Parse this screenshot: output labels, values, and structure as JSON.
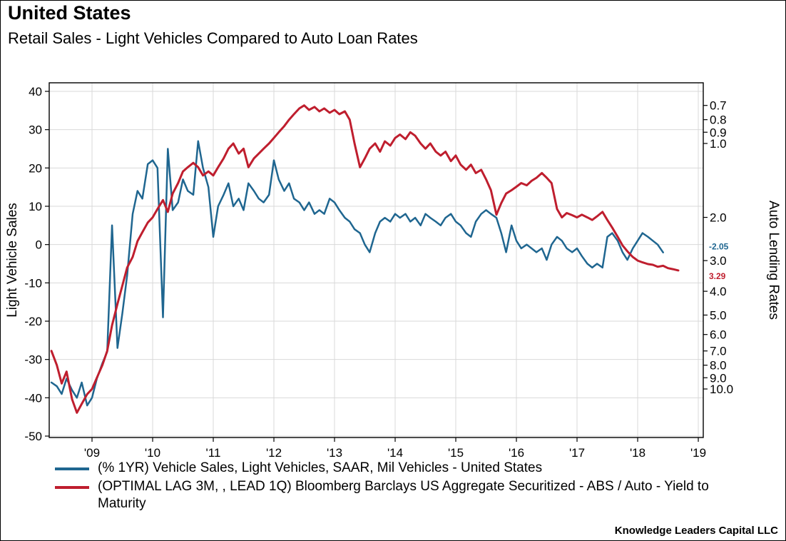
{
  "footer": {
    "text": "Knowledge Leaders Capital LLC"
  },
  "chart_data": {
    "type": "line",
    "title": "United States",
    "subtitle": "Retail Sales - Light Vehicles Compared to Auto Loan Rates",
    "style": {
      "grid": "#d9d9d9",
      "frame": "#000000",
      "background": "#ffffff"
    },
    "x_axis": {
      "range": [
        2008.294,
        2019.082
      ],
      "ticks": [
        2009,
        2010,
        2011,
        2012,
        2013,
        2014,
        2015,
        2016,
        2017,
        2018,
        2019
      ],
      "tick_labels": [
        "'09",
        "'10",
        "'11",
        "'12",
        "'13",
        "'14",
        "'15",
        "'16",
        "'17",
        "'18",
        "'19"
      ]
    },
    "y_left": {
      "label": "Light Vehicle Sales",
      "scale": "linear",
      "ticks": [
        40,
        30,
        20,
        10,
        0,
        -10,
        -20,
        -30,
        -40,
        -50
      ],
      "range": [
        -50,
        40
      ]
    },
    "y_right": {
      "label": "Auto Lending Rates",
      "scale": "log-inverted",
      "ticks": [
        0.7,
        0.8,
        0.9,
        1.0,
        2.0,
        3.0,
        4.0,
        5.0,
        6.0,
        7.0,
        8.0,
        9.0,
        10.0
      ]
    },
    "legend_position": "bottom",
    "grid": true,
    "series": [
      {
        "name": "(% 1YR) Vehicle Sales, Light Vehicles, SAAR, Mil Vehicles - United States",
        "color": "#1f6690",
        "axis": "left",
        "end_label": "-2.05",
        "x": [
          2008.33,
          2008.42,
          2008.5,
          2008.58,
          2008.67,
          2008.75,
          2008.83,
          2008.92,
          2009.0,
          2009.08,
          2009.17,
          2009.25,
          2009.33,
          2009.42,
          2009.5,
          2009.58,
          2009.67,
          2009.75,
          2009.83,
          2009.92,
          2010.0,
          2010.08,
          2010.17,
          2010.25,
          2010.33,
          2010.42,
          2010.5,
          2010.58,
          2010.67,
          2010.75,
          2010.83,
          2010.92,
          2011.0,
          2011.08,
          2011.17,
          2011.25,
          2011.33,
          2011.42,
          2011.5,
          2011.58,
          2011.67,
          2011.75,
          2011.83,
          2011.92,
          2012.0,
          2012.08,
          2012.17,
          2012.25,
          2012.33,
          2012.42,
          2012.5,
          2012.58,
          2012.67,
          2012.75,
          2012.83,
          2012.92,
          2013.0,
          2013.08,
          2013.17,
          2013.25,
          2013.33,
          2013.42,
          2013.5,
          2013.58,
          2013.67,
          2013.75,
          2013.83,
          2013.92,
          2014.0,
          2014.08,
          2014.17,
          2014.25,
          2014.33,
          2014.42,
          2014.5,
          2014.58,
          2014.67,
          2014.75,
          2014.83,
          2014.92,
          2015.0,
          2015.08,
          2015.17,
          2015.25,
          2015.33,
          2015.42,
          2015.5,
          2015.58,
          2015.67,
          2015.75,
          2015.83,
          2015.92,
          2016.0,
          2016.08,
          2016.17,
          2016.25,
          2016.33,
          2016.42,
          2016.5,
          2016.58,
          2016.67,
          2016.75,
          2016.83,
          2016.92,
          2017.0,
          2017.08,
          2017.17,
          2017.25,
          2017.33,
          2017.42,
          2017.5,
          2017.58,
          2017.67,
          2017.75,
          2017.83,
          2017.92,
          2018.0,
          2018.08,
          2018.17,
          2018.25,
          2018.33,
          2018.42
        ],
        "y": [
          -36,
          -37,
          -39,
          -35,
          -38,
          -40,
          -36,
          -42,
          -40,
          -35,
          -31,
          -28,
          5,
          -27,
          -18,
          -8,
          8,
          14,
          12,
          21,
          22,
          20,
          -19,
          25,
          9,
          11,
          17,
          14,
          13,
          27,
          20,
          15,
          2,
          10,
          13,
          16,
          10,
          12,
          9,
          16,
          14,
          12,
          11,
          13,
          22,
          17,
          14,
          16,
          12,
          11,
          9,
          11,
          8,
          9,
          8,
          12,
          11,
          9,
          7,
          6,
          4,
          3,
          0,
          -2,
          3,
          6,
          7,
          6,
          8,
          7,
          8,
          6,
          7,
          5,
          8,
          7,
          6,
          5,
          7,
          8,
          6,
          5,
          3,
          2,
          6,
          8,
          9,
          8,
          7,
          3,
          -2,
          5,
          1,
          -1,
          0,
          -1,
          -2,
          -1,
          -4,
          0,
          2,
          1,
          -1,
          -2,
          -1,
          -3,
          -5,
          -6,
          -5,
          -6,
          2,
          3,
          1,
          -2,
          -4,
          -1,
          1,
          3,
          2,
          1,
          0,
          -2.05
        ]
      },
      {
        "name": "(OPTIMAL LAG 3M,  , LEAD 1Q) Bloomberg Barclays US Aggregate Securitized - ABS / Auto - Yield to Maturity",
        "color": "#bf1e2e",
        "axis": "right",
        "end_label": "3.29",
        "x": [
          2008.33,
          2008.42,
          2008.5,
          2008.58,
          2008.67,
          2008.75,
          2008.83,
          2008.92,
          2009.0,
          2009.08,
          2009.17,
          2009.25,
          2009.33,
          2009.42,
          2009.5,
          2009.58,
          2009.67,
          2009.75,
          2009.83,
          2009.92,
          2010.0,
          2010.08,
          2010.17,
          2010.25,
          2010.33,
          2010.42,
          2010.5,
          2010.58,
          2010.67,
          2010.75,
          2010.83,
          2010.92,
          2011.0,
          2011.08,
          2011.17,
          2011.25,
          2011.33,
          2011.42,
          2011.5,
          2011.58,
          2011.67,
          2011.75,
          2011.83,
          2011.92,
          2012.0,
          2012.08,
          2012.17,
          2012.25,
          2012.33,
          2012.42,
          2012.5,
          2012.58,
          2012.67,
          2012.75,
          2012.83,
          2012.92,
          2013.0,
          2013.08,
          2013.17,
          2013.25,
          2013.33,
          2013.42,
          2013.5,
          2013.58,
          2013.67,
          2013.75,
          2013.83,
          2013.92,
          2014.0,
          2014.08,
          2014.17,
          2014.25,
          2014.33,
          2014.42,
          2014.5,
          2014.58,
          2014.67,
          2014.75,
          2014.83,
          2014.92,
          2015.0,
          2015.08,
          2015.17,
          2015.25,
          2015.33,
          2015.42,
          2015.5,
          2015.58,
          2015.67,
          2015.75,
          2015.83,
          2015.92,
          2016.0,
          2016.08,
          2016.17,
          2016.25,
          2016.33,
          2016.42,
          2016.5,
          2016.58,
          2016.67,
          2016.75,
          2016.83,
          2016.92,
          2017.0,
          2017.08,
          2017.17,
          2017.25,
          2017.33,
          2017.42,
          2017.5,
          2017.58,
          2017.67,
          2017.75,
          2017.83,
          2017.92,
          2018.0,
          2018.08,
          2018.17,
          2018.25,
          2018.33,
          2018.42,
          2018.5,
          2018.58,
          2018.67
        ],
        "y": [
          7.0,
          8.0,
          9.5,
          8.5,
          11.0,
          12.5,
          11.5,
          10.5,
          10.0,
          9.0,
          8.0,
          7.0,
          5.5,
          4.5,
          3.8,
          3.2,
          2.9,
          2.5,
          2.3,
          2.1,
          2.0,
          1.85,
          1.7,
          1.9,
          1.6,
          1.45,
          1.3,
          1.25,
          1.2,
          1.25,
          1.35,
          1.3,
          1.35,
          1.25,
          1.15,
          1.05,
          1.0,
          1.1,
          1.05,
          1.25,
          1.15,
          1.1,
          1.05,
          1.0,
          0.95,
          0.9,
          0.85,
          0.8,
          0.76,
          0.72,
          0.7,
          0.73,
          0.71,
          0.74,
          0.72,
          0.75,
          0.73,
          0.76,
          0.74,
          0.8,
          1.0,
          1.25,
          1.15,
          1.05,
          1.0,
          1.08,
          0.98,
          1.02,
          0.95,
          0.92,
          0.96,
          0.9,
          0.93,
          1.0,
          1.05,
          1.0,
          1.08,
          1.12,
          1.08,
          1.18,
          1.12,
          1.22,
          1.28,
          1.22,
          1.32,
          1.28,
          1.4,
          1.55,
          1.95,
          1.75,
          1.6,
          1.55,
          1.5,
          1.45,
          1.48,
          1.42,
          1.38,
          1.32,
          1.38,
          1.45,
          1.85,
          2.0,
          1.92,
          1.96,
          2.0,
          1.95,
          2.0,
          2.05,
          1.98,
          1.9,
          2.05,
          2.2,
          2.4,
          2.6,
          2.75,
          2.9,
          3.0,
          3.05,
          3.1,
          3.12,
          3.18,
          3.15,
          3.22,
          3.25,
          3.29
        ]
      }
    ]
  }
}
